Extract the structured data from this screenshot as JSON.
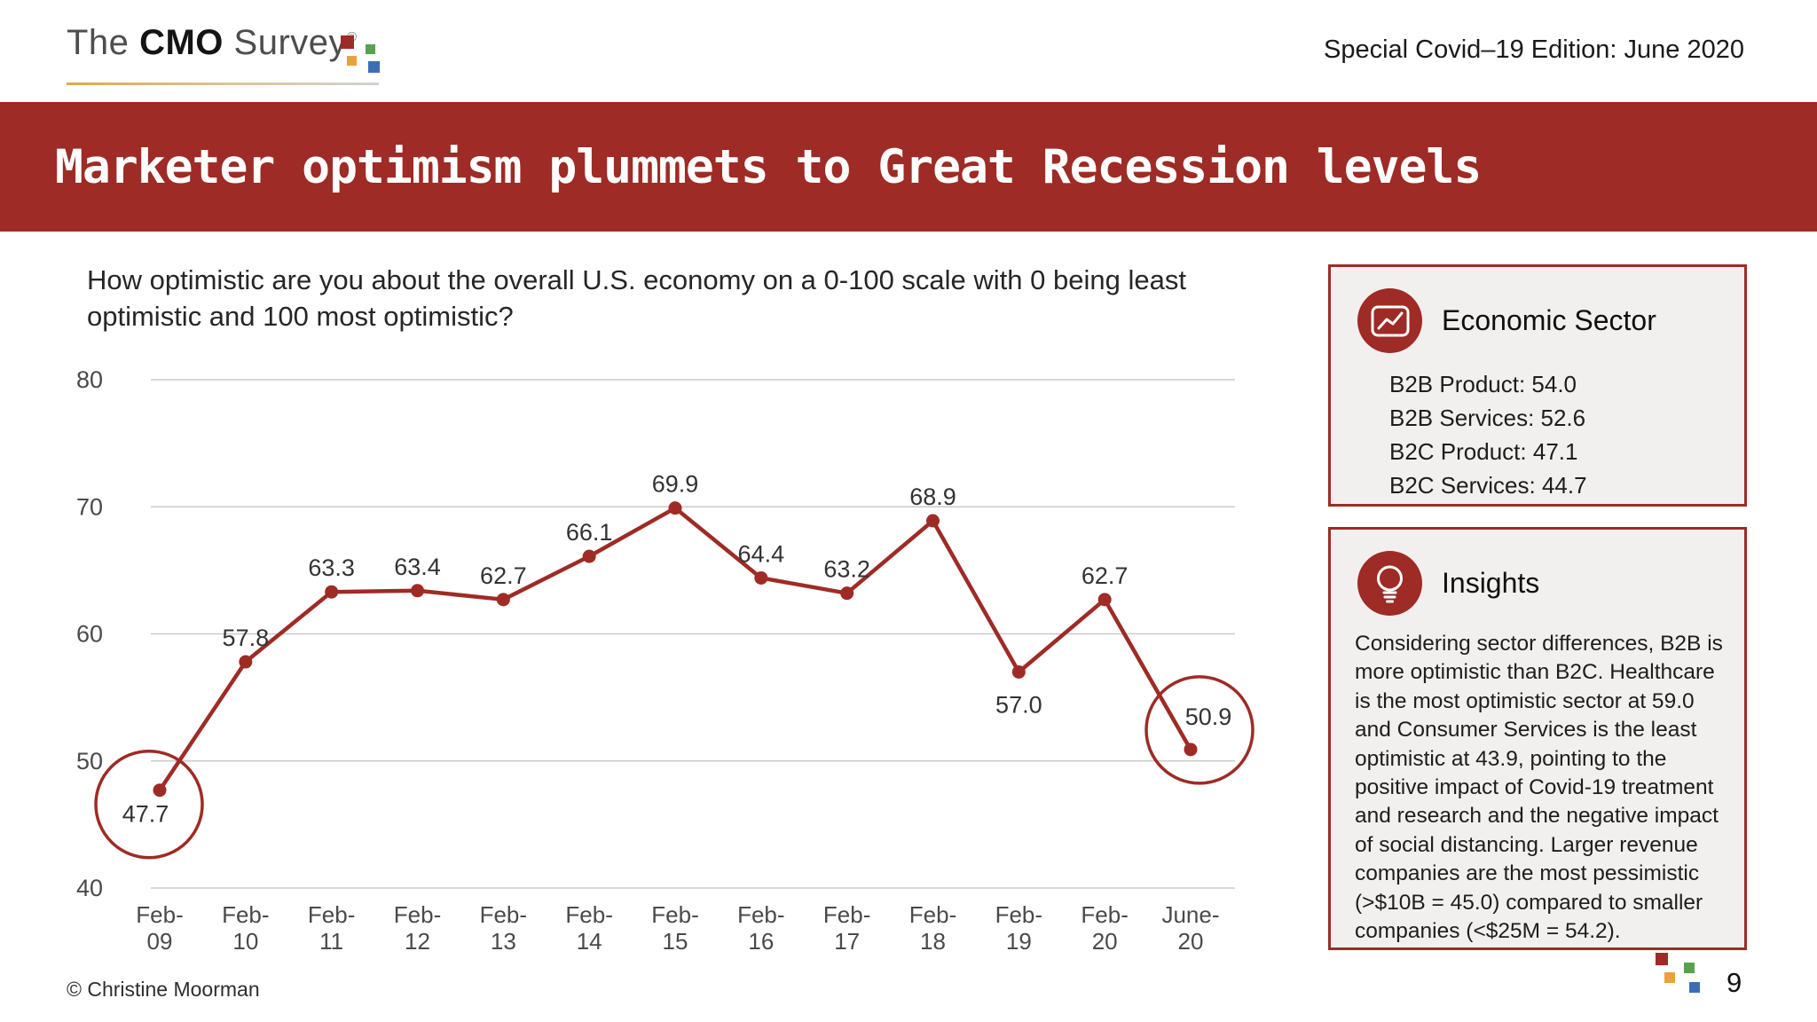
{
  "header": {
    "logo_the": "The",
    "logo_cmo": "CMO",
    "logo_survey": "Survey",
    "logo_registered": "®",
    "edition": "Special Covid–19 Edition: June 2020"
  },
  "banner": {
    "title": "Marketer optimism plummets to Great Recession levels"
  },
  "main": {
    "question": "How optimistic are you about the overall U.S. economy on a 0-100 scale with 0 being least optimistic and 100 most optimistic?"
  },
  "chart_data": {
    "type": "line",
    "title": "",
    "xlabel": "",
    "ylabel": "",
    "categories": [
      "Feb-09",
      "Feb-10",
      "Feb-11",
      "Feb-12",
      "Feb-13",
      "Feb-14",
      "Feb-15",
      "Feb-16",
      "Feb-17",
      "Feb-18",
      "Feb-19",
      "Feb-20",
      "June-20"
    ],
    "values": [
      47.7,
      57.8,
      63.3,
      63.4,
      62.7,
      66.1,
      69.9,
      64.4,
      63.2,
      68.9,
      57.0,
      62.7,
      50.9
    ],
    "ylim": [
      40,
      80
    ],
    "yticks": [
      40,
      50,
      60,
      70,
      80
    ],
    "grid": true,
    "legend": "none",
    "line_color": "#9E2B25",
    "marker": "circle",
    "circled_points": [
      0,
      12
    ],
    "label_positions": [
      "circled-below-left",
      "above",
      "above",
      "above",
      "above",
      "above",
      "above",
      "above",
      "above",
      "above",
      "below",
      "above",
      "circled-above-right"
    ]
  },
  "sidebar": {
    "economic_sector": {
      "title": "Economic Sector",
      "icon": "line-chart-icon",
      "items": [
        "B2B Product: 54.0",
        "B2B Services: 52.6",
        "B2C Product: 47.1",
        "B2C Services: 44.7"
      ]
    },
    "insights": {
      "title": "Insights",
      "icon": "lightbulb-icon",
      "text": "Considering sector differences, B2B is more optimistic than B2C. Healthcare is the most optimistic sector at 59.0 and Consumer Services is the least optimistic at 43.9, pointing to the positive impact of Covid-19 treatment and research and the negative impact of social distancing. Larger revenue companies are the most pessimistic (>$10B = 45.0) compared to smaller companies (<$25M = 54.2)."
    }
  },
  "footer": {
    "copyright": "© Christine Moorman",
    "page_number": "9"
  },
  "colors": {
    "accent_red": "#9E2B25",
    "panel_bg": "#F2F0EE",
    "grid_gray": "#CBCBCB",
    "axis_text": "#4a4a4a",
    "label_text": "#333333",
    "square_red": "#9E2B25",
    "square_green": "#58A14F",
    "square_orange": "#EAA13C",
    "square_blue": "#3D6EB5"
  }
}
